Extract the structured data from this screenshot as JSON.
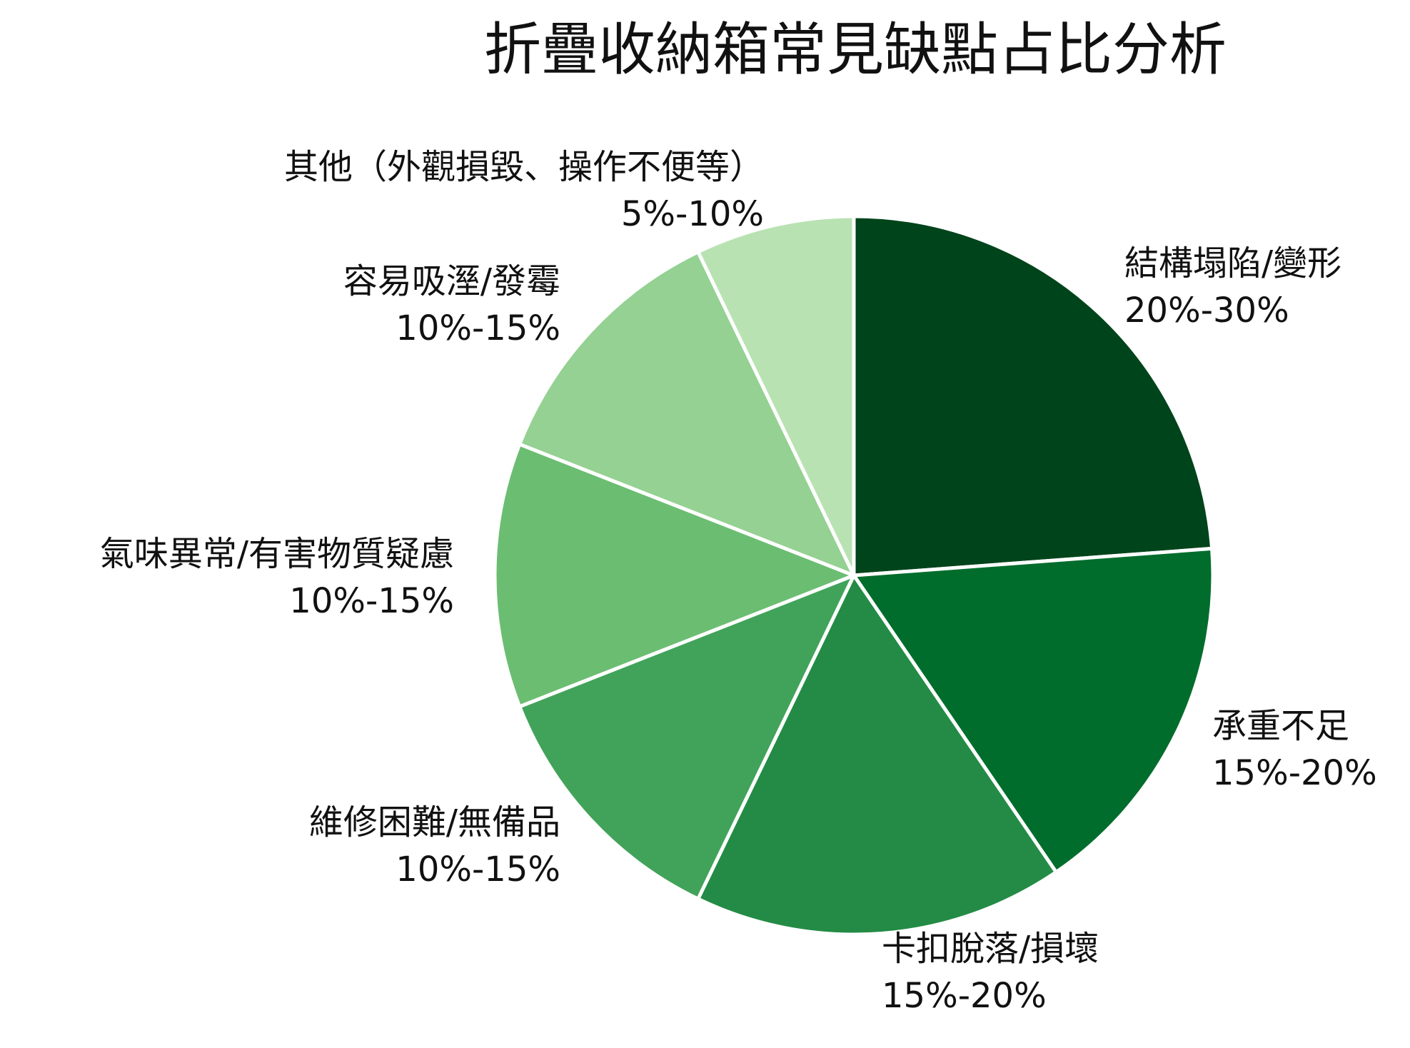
{
  "chart_data": {
    "type": "pie",
    "title": "折疊收納箱常見缺點占比分析",
    "slices": [
      {
        "label": "結構塌陷/變形",
        "range": "20%-30%",
        "value": 25,
        "color": "#00441b"
      },
      {
        "label": "承重不足",
        "range": "15%-20%",
        "value": 17.5,
        "color": "#006d2c"
      },
      {
        "label": "卡扣脫落/損壞",
        "range": "15%-20%",
        "value": 17.5,
        "color": "#238b45"
      },
      {
        "label": "維修困難/無備品",
        "range": "10%-15%",
        "value": 12.5,
        "color": "#41a35a"
      },
      {
        "label": "氣味異常/有害物質疑慮",
        "range": "10%-15%",
        "value": 12.5,
        "color": "#6bbd72"
      },
      {
        "label": "容易吸溼/發霉",
        "range": "10%-15%",
        "value": 12.5,
        "color": "#94d192"
      },
      {
        "label": "其他（外觀損毀、操作不便等）",
        "range": "5%-10%",
        "value": 7.5,
        "color": "#b9e2b3"
      }
    ]
  }
}
